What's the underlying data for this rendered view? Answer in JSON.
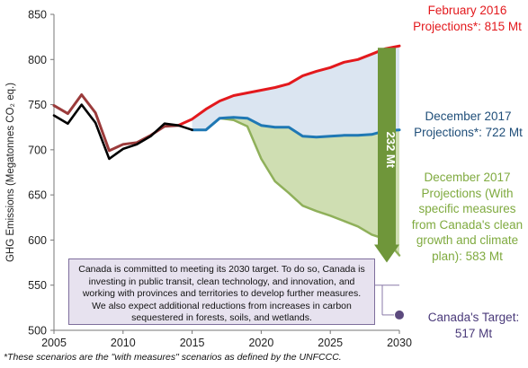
{
  "chart_data": {
    "type": "line",
    "ylabel": "GHG Emissions (Megatonnes CO₂ eq.)",
    "ylim": [
      500,
      850
    ],
    "yticks": [
      500,
      550,
      600,
      650,
      700,
      750,
      800,
      850
    ],
    "xlim": [
      2005,
      2030
    ],
    "xticks": [
      2005,
      2010,
      2015,
      2020,
      2025,
      2030
    ],
    "grid": false,
    "series": [
      {
        "key": "historical_2016",
        "color": "#9b3b3b",
        "x": [
          2005,
          2006,
          2007,
          2008,
          2009,
          2010,
          2011,
          2012,
          2013,
          2014
        ],
        "values": [
          749,
          740,
          761,
          741,
          699,
          706,
          708,
          716,
          726,
          727
        ]
      },
      {
        "key": "historical_2017",
        "color": "#000000",
        "x": [
          2005,
          2006,
          2007,
          2008,
          2009,
          2010,
          2011,
          2012,
          2013,
          2014,
          2015
        ],
        "values": [
          738,
          729,
          750,
          730,
          690,
          701,
          706,
          715,
          729,
          727,
          722
        ]
      },
      {
        "key": "feb2016",
        "color": "#e3191d",
        "x": [
          2014,
          2015,
          2016,
          2017,
          2018,
          2019,
          2020,
          2021,
          2022,
          2023,
          2024,
          2025,
          2026,
          2027,
          2028,
          2029,
          2030
        ],
        "values": [
          727,
          734,
          745,
          754,
          760,
          763,
          766,
          769,
          773,
          782,
          787,
          791,
          797,
          800,
          806,
          812,
          815
        ]
      },
      {
        "key": "dec2017",
        "color": "#1f78b4",
        "x": [
          2015,
          2016,
          2017,
          2018,
          2019,
          2020,
          2021,
          2022,
          2023,
          2024,
          2025,
          2026,
          2027,
          2028,
          2029,
          2030
        ],
        "values": [
          722,
          722,
          735,
          736,
          735,
          727,
          725,
          725,
          715,
          714,
          715,
          716,
          716,
          717,
          721,
          722
        ]
      },
      {
        "key": "specific",
        "color": "#8fb05a",
        "x": [
          2015,
          2016,
          2017,
          2018,
          2019,
          2020,
          2021,
          2022,
          2023,
          2024,
          2025,
          2026,
          2027,
          2028,
          2029,
          2030
        ],
        "values": [
          722,
          722,
          735,
          733,
          726,
          690,
          665,
          652,
          638,
          632,
          627,
          621,
          615,
          606,
          601,
          583
        ]
      }
    ],
    "fills": {
      "blue_area": "#dbe5f1",
      "green_area": "#cfdeb2"
    },
    "target": {
      "x": 2030,
      "value": 517,
      "color": "#5c4a7e"
    },
    "gap": {
      "label": "232 Mt",
      "from": 815,
      "to": 583,
      "color": "#6f963a"
    }
  },
  "labels": {
    "feb2016": "February 2016 Projections*: 815 Mt",
    "dec2017": "December 2017 Projections*: 722 Mt",
    "specific": "December 2017 Projections (With specific measures from Canada's clean growth and climate plan): 583 Mt",
    "target": "Canada's Target: 517 Mt"
  },
  "callout": "Canada is committed to meeting its 2030 target. To do so, Canada is investing in public transit, clean technology, and innovation, and working with provinces and territories to develop further measures. We also expect additional reductions from increases in carbon sequestered in forests, soils, and wetlands.",
  "footnote": "*These scenarios are the \"with measures\" scenarios as defined by the UNFCCC."
}
